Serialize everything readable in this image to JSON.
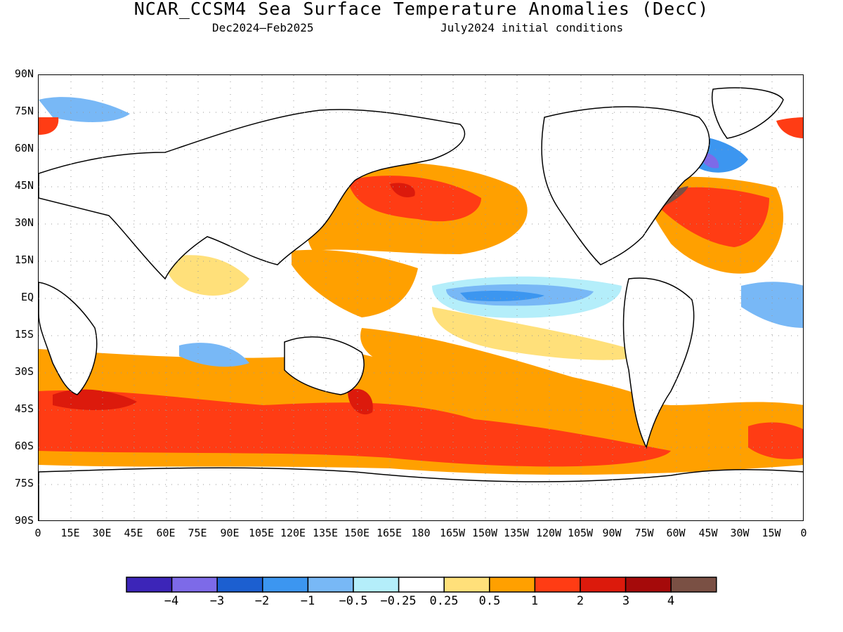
{
  "title": "NCAR_CCSM4 Sea Surface Temperature Anomalies (DecC)",
  "subtitle_left": "Dec2024–Feb2025",
  "subtitle_right": "July2024 initial conditions",
  "lat_labels": [
    "90N",
    "75N",
    "60N",
    "45N",
    "30N",
    "15N",
    "EQ",
    "15S",
    "30S",
    "45S",
    "60S",
    "75S",
    "90S"
  ],
  "lon_labels": [
    "0",
    "15E",
    "30E",
    "45E",
    "60E",
    "75E",
    "90E",
    "105E",
    "120E",
    "135E",
    "150E",
    "165E",
    "180",
    "165W",
    "150W",
    "135W",
    "120W",
    "105W",
    "90W",
    "75W",
    "60W",
    "45W",
    "30W",
    "15W",
    "0"
  ],
  "legend": {
    "colors": [
      "#3c25b8",
      "#7d6ae8",
      "#1c5fd0",
      "#3c96f0",
      "#78b8f6",
      "#b4eefa",
      "#ffffff",
      "#ffe07a",
      "#ffa000",
      "#ff3c14",
      "#dc1a0c",
      "#a50a0a",
      "#7a5044"
    ],
    "labels": [
      "−4",
      "−3",
      "−2",
      "−1",
      "−0.5",
      "−0.25",
      "0.25",
      "0.5",
      "1",
      "2",
      "3",
      "4"
    ]
  },
  "colors": {
    "land_outline": "#000000",
    "grid": "#9a9a9a"
  }
}
